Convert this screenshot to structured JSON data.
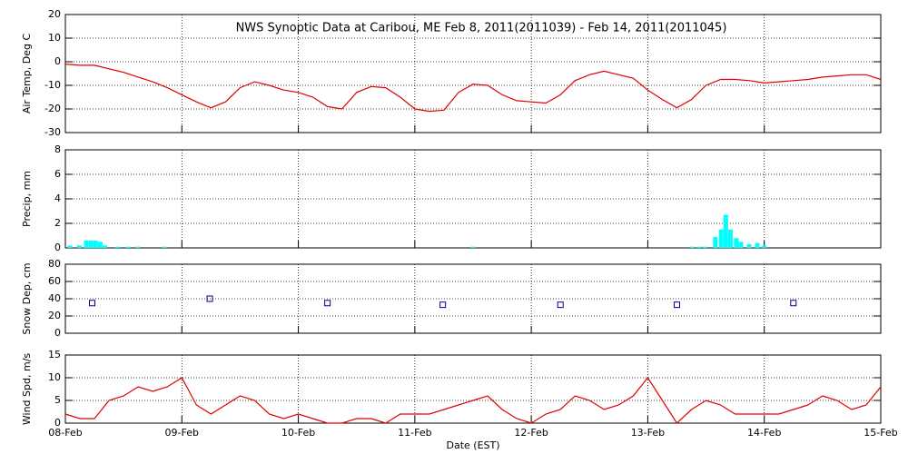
{
  "chart_data": [
    {
      "type": "line",
      "title": "NWS Synoptic Data at Caribou, ME   Feb  8, 2011(2011039) - Feb 14, 2011(2011045)",
      "y_label": "Air Temp, Deg C",
      "xlim": [
        0,
        7
      ],
      "ylim": [
        -30,
        20
      ],
      "yticks": [
        -30,
        -20,
        -10,
        0,
        10,
        20
      ],
      "grid": true,
      "x": [
        0,
        0.125,
        0.25,
        0.375,
        0.5,
        0.625,
        0.75,
        0.875,
        1,
        1.125,
        1.25,
        1.375,
        1.5,
        1.625,
        1.75,
        1.875,
        2,
        2.125,
        2.25,
        2.375,
        2.5,
        2.625,
        2.75,
        2.875,
        3,
        3.125,
        3.25,
        3.375,
        3.5,
        3.625,
        3.75,
        3.875,
        4,
        4.125,
        4.25,
        4.375,
        4.5,
        4.625,
        4.75,
        4.875,
        5,
        5.125,
        5.25,
        5.375,
        5.5,
        5.625,
        5.75,
        5.875,
        6,
        6.125,
        6.25,
        6.375,
        6.5,
        6.625,
        6.75,
        6.875,
        7
      ],
      "series": [
        {
          "color": "#e00000",
          "values": [
            -1,
            -1.5,
            -1.5,
            -3,
            -4.5,
            -6.5,
            -8.5,
            -11,
            -14,
            -17,
            -19.5,
            -17,
            -11,
            -8.5,
            -10,
            -12,
            -13,
            -15,
            -19,
            -20,
            -13,
            -10.5,
            -11,
            -15,
            -20,
            -21,
            -20.5,
            -13,
            -9.5,
            -10,
            -14,
            -16.5,
            -17,
            -17.5,
            -14,
            -8,
            -5.5,
            -4,
            -5.5,
            -7,
            -12,
            -16,
            -19.5,
            -16,
            -10,
            -7.5,
            -7.5,
            -8,
            -9,
            -8.5,
            -8,
            -7.5,
            -6.5,
            -6,
            -5.5,
            -5.5,
            -7.5
          ]
        }
      ]
    },
    {
      "type": "bar",
      "y_label": "Precip, mm",
      "xlim": [
        0,
        7
      ],
      "ylim": [
        0,
        8
      ],
      "yticks": [
        0,
        2,
        4,
        6,
        8
      ],
      "grid": true,
      "x": [
        0.02,
        0.1,
        0.16,
        0.2,
        0.24,
        0.28,
        0.32,
        0.43,
        0.52,
        0.6,
        0.83,
        3.48,
        5.36,
        5.42,
        5.47,
        5.56,
        5.61,
        5.65,
        5.69,
        5.74,
        5.78,
        5.85,
        5.92,
        5.98
      ],
      "series": [
        {
          "color": "#00ffff",
          "values": [
            0.2,
            0.2,
            0.6,
            0.6,
            0.6,
            0.5,
            0.2,
            0.1,
            0.1,
            0.1,
            0.1,
            0.1,
            0.1,
            0.1,
            0.1,
            0.9,
            1.5,
            2.7,
            1.5,
            0.8,
            0.5,
            0.3,
            0.4,
            0.2
          ]
        }
      ]
    },
    {
      "type": "scatter",
      "y_label": "Snow Dep, cm",
      "xlim": [
        0,
        7
      ],
      "ylim": [
        0,
        80
      ],
      "yticks": [
        0,
        20,
        40,
        60,
        80
      ],
      "grid": true,
      "x": [
        0.23,
        1.24,
        2.25,
        3.24,
        4.25,
        5.25,
        6.25
      ],
      "series": [
        {
          "color": "#00008b",
          "values": [
            35,
            40,
            35,
            33,
            33,
            33,
            35
          ]
        }
      ]
    },
    {
      "type": "line",
      "y_label": "Wind Spd, m/s",
      "x_label": "Date (EST)",
      "xlim": [
        0,
        7
      ],
      "ylim": [
        0,
        15
      ],
      "yticks": [
        0,
        5,
        10,
        15
      ],
      "grid": true,
      "xticks": [
        {
          "value": 0,
          "label": "08-Feb"
        },
        {
          "value": 1,
          "label": "09-Feb"
        },
        {
          "value": 2,
          "label": "10-Feb"
        },
        {
          "value": 3,
          "label": "11-Feb"
        },
        {
          "value": 4,
          "label": "12-Feb"
        },
        {
          "value": 5,
          "label": "13-Feb"
        },
        {
          "value": 6,
          "label": "14-Feb"
        },
        {
          "value": 7,
          "label": "15-Feb"
        }
      ],
      "x": [
        0,
        0.125,
        0.25,
        0.375,
        0.5,
        0.625,
        0.75,
        0.875,
        1,
        1.125,
        1.25,
        1.375,
        1.5,
        1.625,
        1.75,
        1.875,
        2,
        2.125,
        2.25,
        2.375,
        2.5,
        2.625,
        2.75,
        2.875,
        3,
        3.125,
        3.25,
        3.375,
        3.5,
        3.625,
        3.75,
        3.875,
        4,
        4.125,
        4.25,
        4.375,
        4.5,
        4.625,
        4.75,
        4.875,
        5,
        5.125,
        5.25,
        5.375,
        5.5,
        5.625,
        5.75,
        5.875,
        6,
        6.125,
        6.25,
        6.375,
        6.5,
        6.625,
        6.75,
        6.875,
        7
      ],
      "series": [
        {
          "color": "#e00000",
          "values": [
            2,
            1,
            1,
            5,
            6,
            8,
            7,
            8,
            10,
            4,
            2,
            4,
            6,
            5,
            2,
            1,
            2,
            1,
            0,
            0,
            1,
            1,
            0,
            2,
            2,
            2,
            3,
            4,
            5,
            6,
            3,
            1,
            0,
            2,
            3,
            6,
            5,
            3,
            4,
            6,
            10,
            5,
            0,
            3,
            5,
            4,
            2,
            2,
            2,
            2,
            3,
            4,
            6,
            5,
            3,
            4,
            8
          ]
        }
      ]
    }
  ]
}
